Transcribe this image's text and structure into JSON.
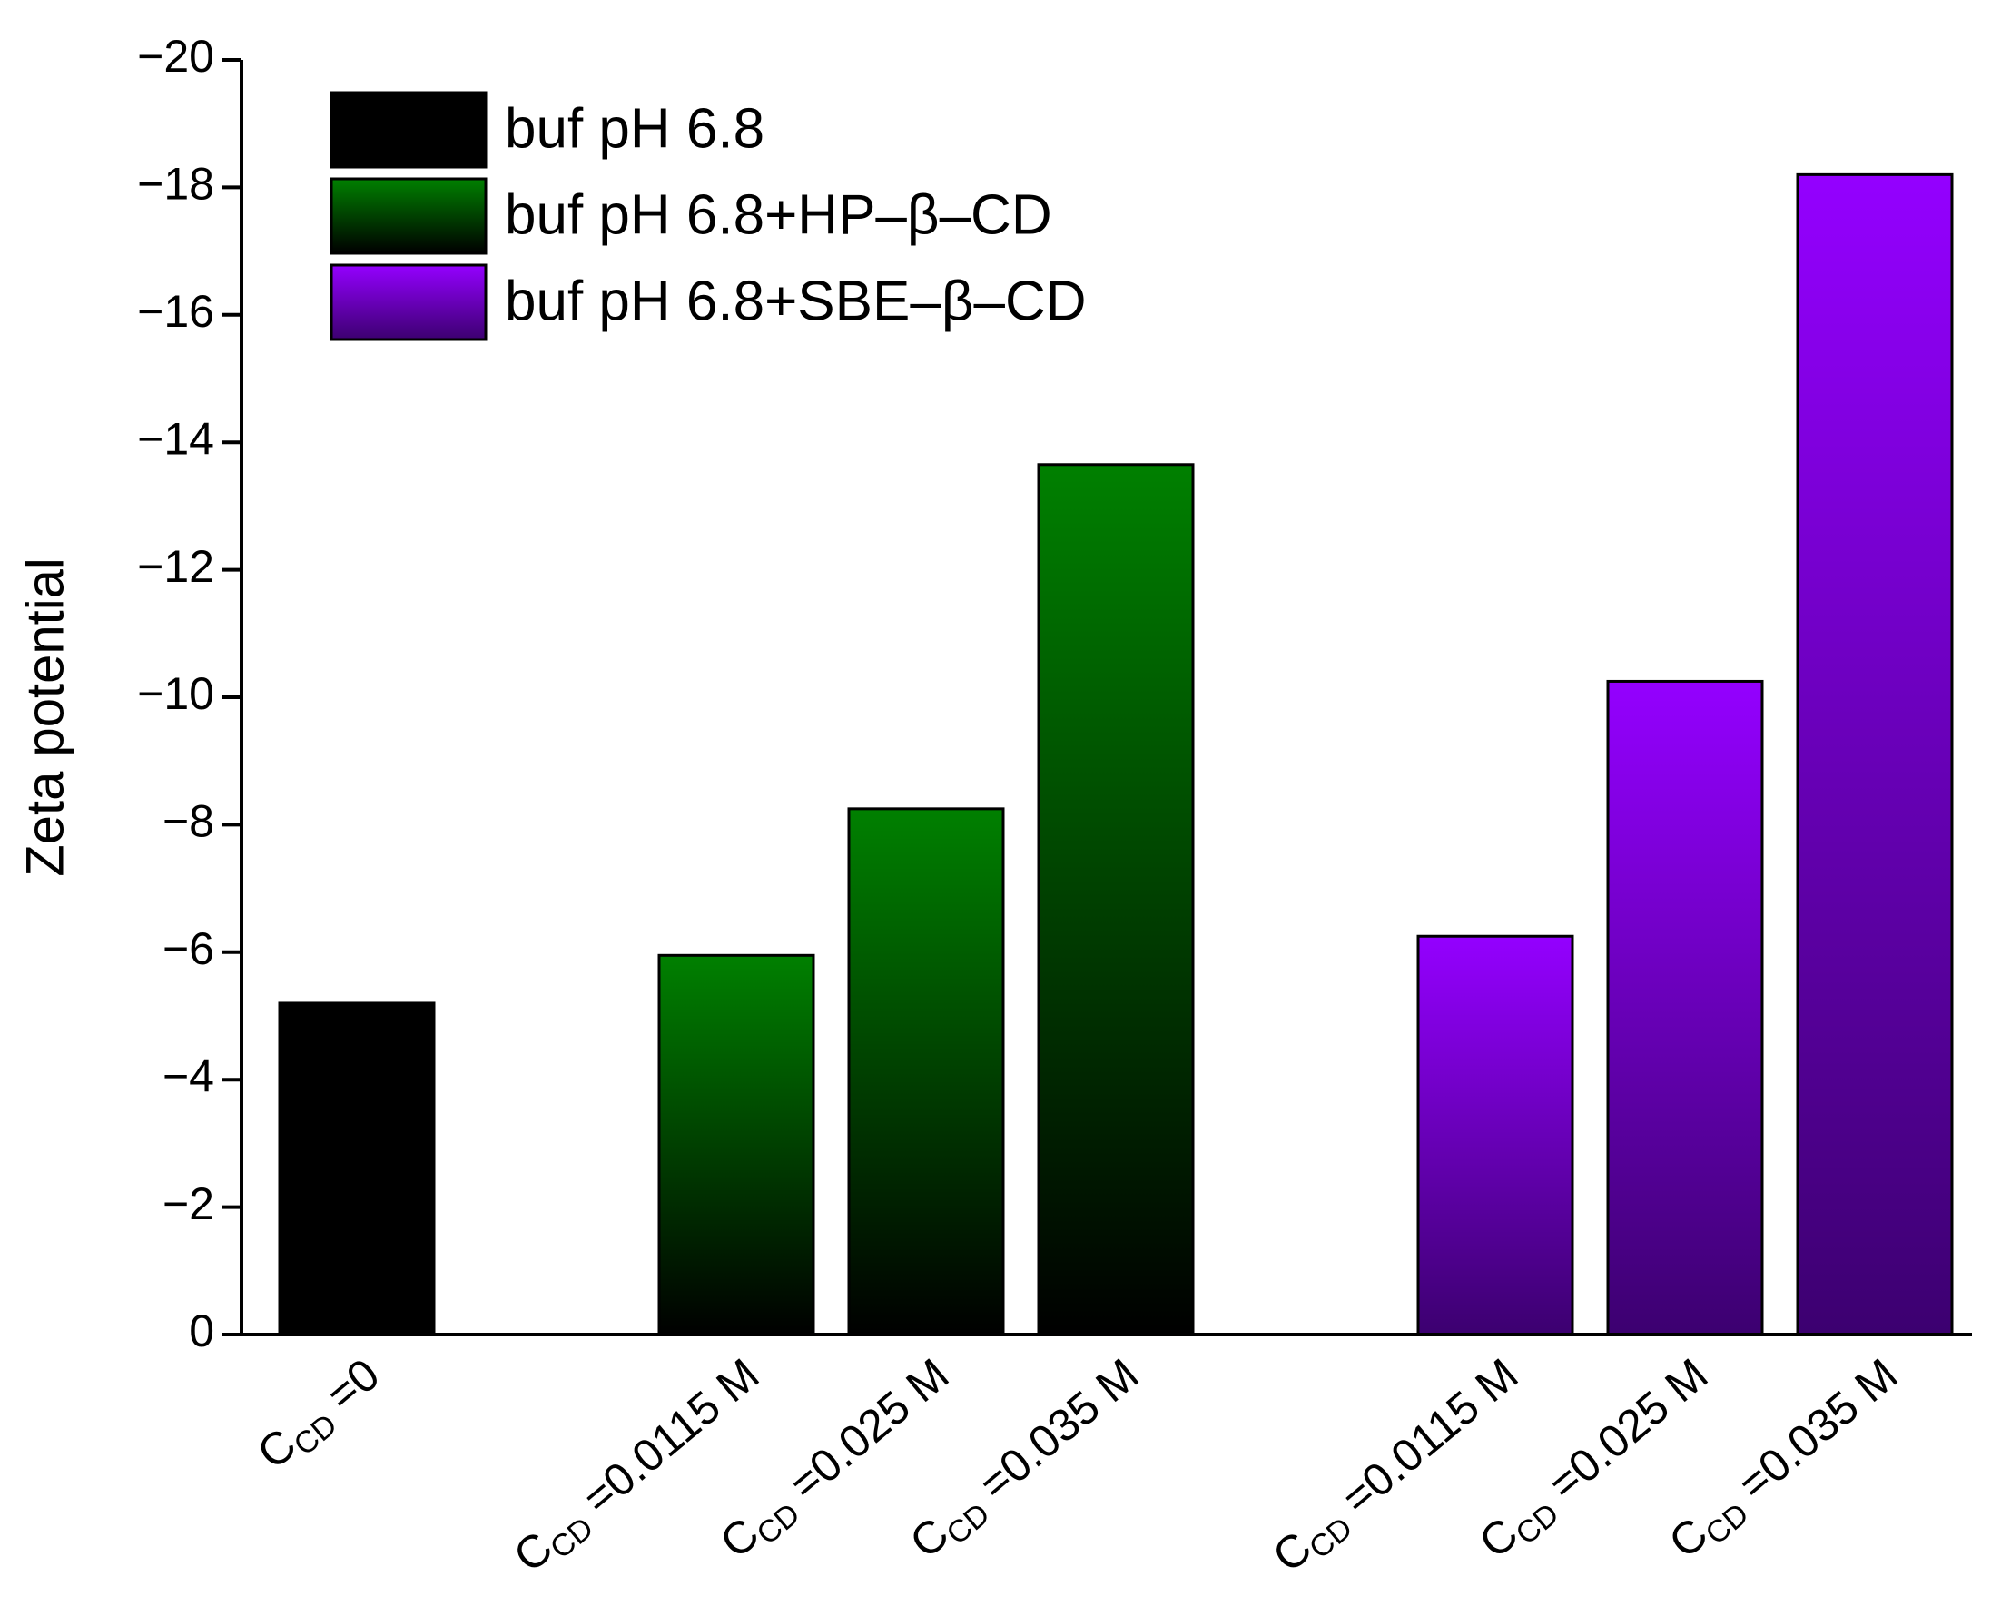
{
  "chart_data": {
    "type": "bar",
    "y_label": "Zeta potential",
    "categories": [
      "CCD =0",
      null,
      "CCD =0.0115 M",
      "CCD =0.025 M",
      "CCD =0.035 M",
      null,
      "CCD =0.0115 M",
      "CCD =0.025 M",
      "CCD =0.035 M"
    ],
    "series": [
      {
        "name": "buf pH 6.8",
        "color": "#000000",
        "color2": "#000000",
        "values": [
          -5.2,
          null,
          null,
          null,
          null,
          null,
          null,
          null,
          null
        ]
      },
      {
        "name": "buf pH 6.8+HP–β–CD",
        "color": "#008000",
        "color2": "#000000",
        "values": [
          null,
          null,
          -5.95,
          -8.25,
          -13.65,
          null,
          null,
          null,
          null
        ]
      },
      {
        "name": "buf pH 6.8+SBE–β–CD",
        "color": "#9400ff",
        "color2": "#3c0070",
        "values": [
          null,
          null,
          null,
          null,
          null,
          null,
          -6.25,
          -10.25,
          -18.2
        ]
      }
    ],
    "ylim": [
      0,
      -20
    ],
    "yticks": [
      0,
      {
        "value": -2,
        "label": "−2"
      },
      {
        "value": -4,
        "label": "−4"
      },
      {
        "value": -6,
        "label": "−6"
      },
      {
        "value": -8,
        "label": "−8"
      },
      {
        "value": -10,
        "label": "−10"
      },
      {
        "value": -12,
        "label": "−12"
      },
      {
        "value": -14,
        "label": "−14"
      },
      {
        "value": -16,
        "label": "−16"
      },
      {
        "value": -18,
        "label": "−18"
      },
      {
        "value": -20,
        "label": "−20"
      }
    ],
    "legend": "top-left"
  }
}
